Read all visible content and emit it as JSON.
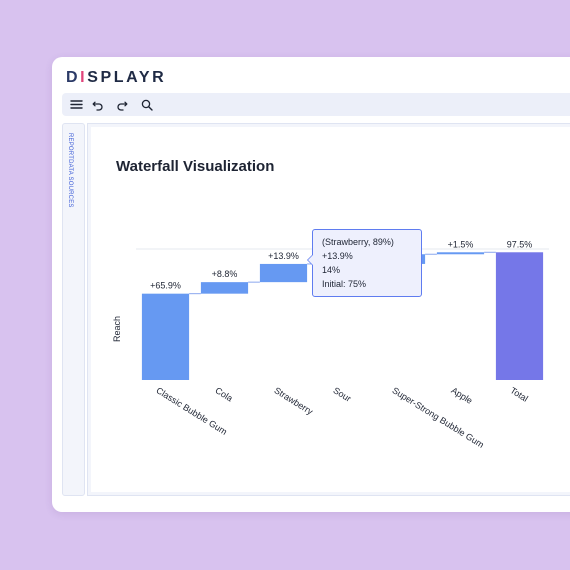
{
  "app": {
    "logo_text": "DISPLAYR",
    "logo_letters": [
      {
        "ch": "D",
        "color": "#2b3a67"
      },
      {
        "ch": "I",
        "color": "#e0457b"
      },
      {
        "ch": "S",
        "color": "#1f2a44"
      },
      {
        "ch": "P",
        "color": "#1f2a44"
      },
      {
        "ch": "L",
        "color": "#1f2a44"
      },
      {
        "ch": "A",
        "color": "#1f2a44"
      },
      {
        "ch": "Y",
        "color": "#1f2a44"
      },
      {
        "ch": "R",
        "color": "#1f2a44"
      }
    ]
  },
  "toolbar": {
    "icons": [
      "menu-icon",
      "undo-icon",
      "redo-icon",
      "search-icon"
    ]
  },
  "sidebar": {
    "label": "REPORTDATA SOURCES"
  },
  "chart": {
    "title": "Waterfall Visualization",
    "ylabel": "Reach",
    "tooltip": {
      "header": "(Strawberry, 89%)",
      "delta": "+13.9%",
      "value": "14%",
      "initial": "Initial: 75%"
    }
  },
  "colors": {
    "increase": "#6699f2",
    "total": "#7577e8",
    "accent": "#5f7cf0",
    "background": "#d8c2ef"
  },
  "chart_data": {
    "type": "bar",
    "subtype": "waterfall",
    "title": "Waterfall Visualization",
    "xlabel": "",
    "ylabel": "Reach",
    "categories": [
      "Classic Bubble Gum",
      "Cola",
      "Strawberry",
      "Sour",
      "Super-Strong Bubble Gum",
      "Apple",
      "Total"
    ],
    "deltas": [
      65.9,
      8.8,
      13.9,
      0,
      7.4,
      1.5,
      97.5
    ],
    "data_labels": [
      "+65.9%",
      "+8.8%",
      "+13.9%",
      "",
      "",
      "+1.5%",
      "97.5%"
    ],
    "is_total": [
      false,
      false,
      false,
      false,
      false,
      false,
      true
    ],
    "ylim": [
      0,
      100
    ]
  }
}
